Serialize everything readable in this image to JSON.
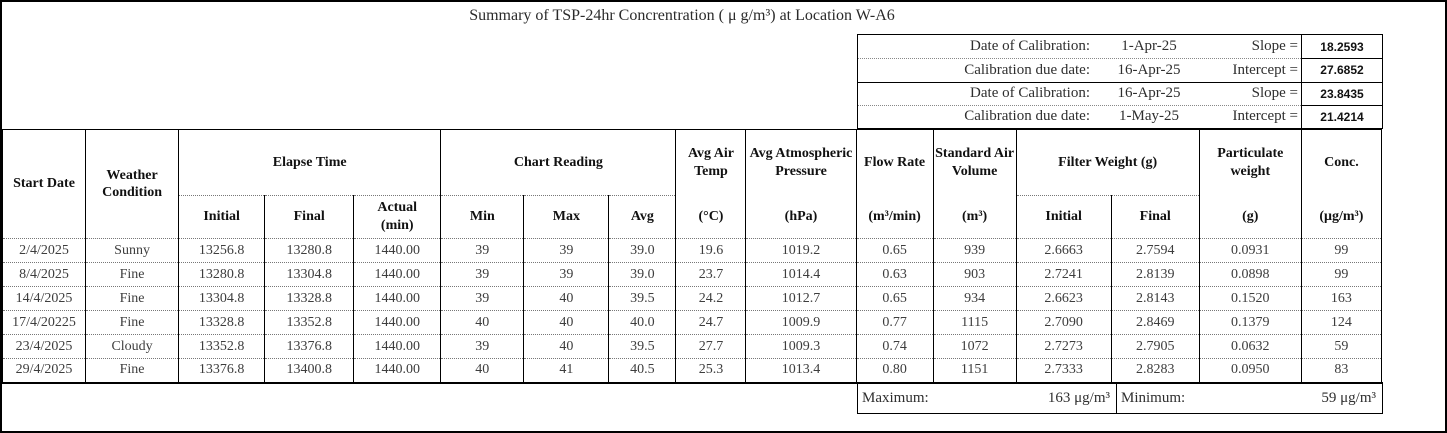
{
  "title": "Summary of TSP-24hr Concrentration ( μ g/m³) at Location W-A6",
  "calibration": {
    "rows": [
      {
        "label": "Date of Calibration:",
        "date": "1-Apr-25",
        "param": "Slope =",
        "value": "18.2593"
      },
      {
        "label": "Calibration due date:",
        "date": "16-Apr-25",
        "param": "Intercept =",
        "value": "27.6852"
      },
      {
        "label": "Date of Calibration:",
        "date": "16-Apr-25",
        "param": "Slope =",
        "value": "23.8435"
      },
      {
        "label": "Calibration due date:",
        "date": "1-May-25",
        "param": "Intercept =",
        "value": "21.4214"
      }
    ]
  },
  "table": {
    "headers": {
      "start_date": "Start Date",
      "weather": "Weather Condition",
      "elapse_time": "Elapse Time",
      "elapse_initial": "Initial",
      "elapse_final": "Final",
      "elapse_actual": "Actual",
      "elapse_actual_unit": "(min)",
      "chart_reading": "Chart Reading",
      "chart_min": "Min",
      "chart_max": "Max",
      "chart_avg": "Avg",
      "avg_air_temp": "Avg Air Temp",
      "avg_air_temp_unit": "(°C)",
      "avg_pressure": "Avg Atmospheric Pressure",
      "avg_pressure_unit": "(hPa)",
      "flow_rate": "Flow Rate",
      "flow_rate_unit": "(m³/min)",
      "std_air_volume": "Standard Air Volume",
      "std_air_volume_unit": "(m³)",
      "filter_weight": "Filter Weight (g)",
      "filter_initial": "Initial",
      "filter_final": "Final",
      "particulate_weight": "Particulate weight",
      "particulate_weight_unit": "(g)",
      "conc": "Conc.",
      "conc_unit": "(μg/m³)"
    },
    "rows": [
      [
        "2/4/2025",
        "Sunny",
        "13256.8",
        "13280.8",
        "1440.00",
        "39",
        "39",
        "39.0",
        "19.6",
        "1019.2",
        "0.65",
        "939",
        "2.6663",
        "2.7594",
        "0.0931",
        "99"
      ],
      [
        "8/4/2025",
        "Fine",
        "13280.8",
        "13304.8",
        "1440.00",
        "39",
        "39",
        "39.0",
        "23.7",
        "1014.4",
        "0.63",
        "903",
        "2.7241",
        "2.8139",
        "0.0898",
        "99"
      ],
      [
        "14/4/2025",
        "Fine",
        "13304.8",
        "13328.8",
        "1440.00",
        "39",
        "40",
        "39.5",
        "24.2",
        "1012.7",
        "0.65",
        "934",
        "2.6623",
        "2.8143",
        "0.1520",
        "163"
      ],
      [
        "17/4/20225",
        "Fine",
        "13328.8",
        "13352.8",
        "1440.00",
        "40",
        "40",
        "40.0",
        "24.7",
        "1009.9",
        "0.77",
        "1115",
        "2.7090",
        "2.8469",
        "0.1379",
        "124"
      ],
      [
        "23/4/2025",
        "Cloudy",
        "13352.8",
        "13376.8",
        "1440.00",
        "39",
        "40",
        "39.5",
        "27.7",
        "1009.3",
        "0.74",
        "1072",
        "2.7273",
        "2.7905",
        "0.0632",
        "59"
      ],
      [
        "29/4/2025",
        "Fine",
        "13376.8",
        "13400.8",
        "1440.00",
        "40",
        "41",
        "40.5",
        "25.3",
        "1013.4",
        "0.80",
        "1151",
        "2.7333",
        "2.8283",
        "0.0950",
        "83"
      ]
    ]
  },
  "summary": {
    "max_label": "Maximum:",
    "max_value": "163 μg/m³",
    "min_label": "Minimum:",
    "min_value": "59 μg/m³"
  }
}
